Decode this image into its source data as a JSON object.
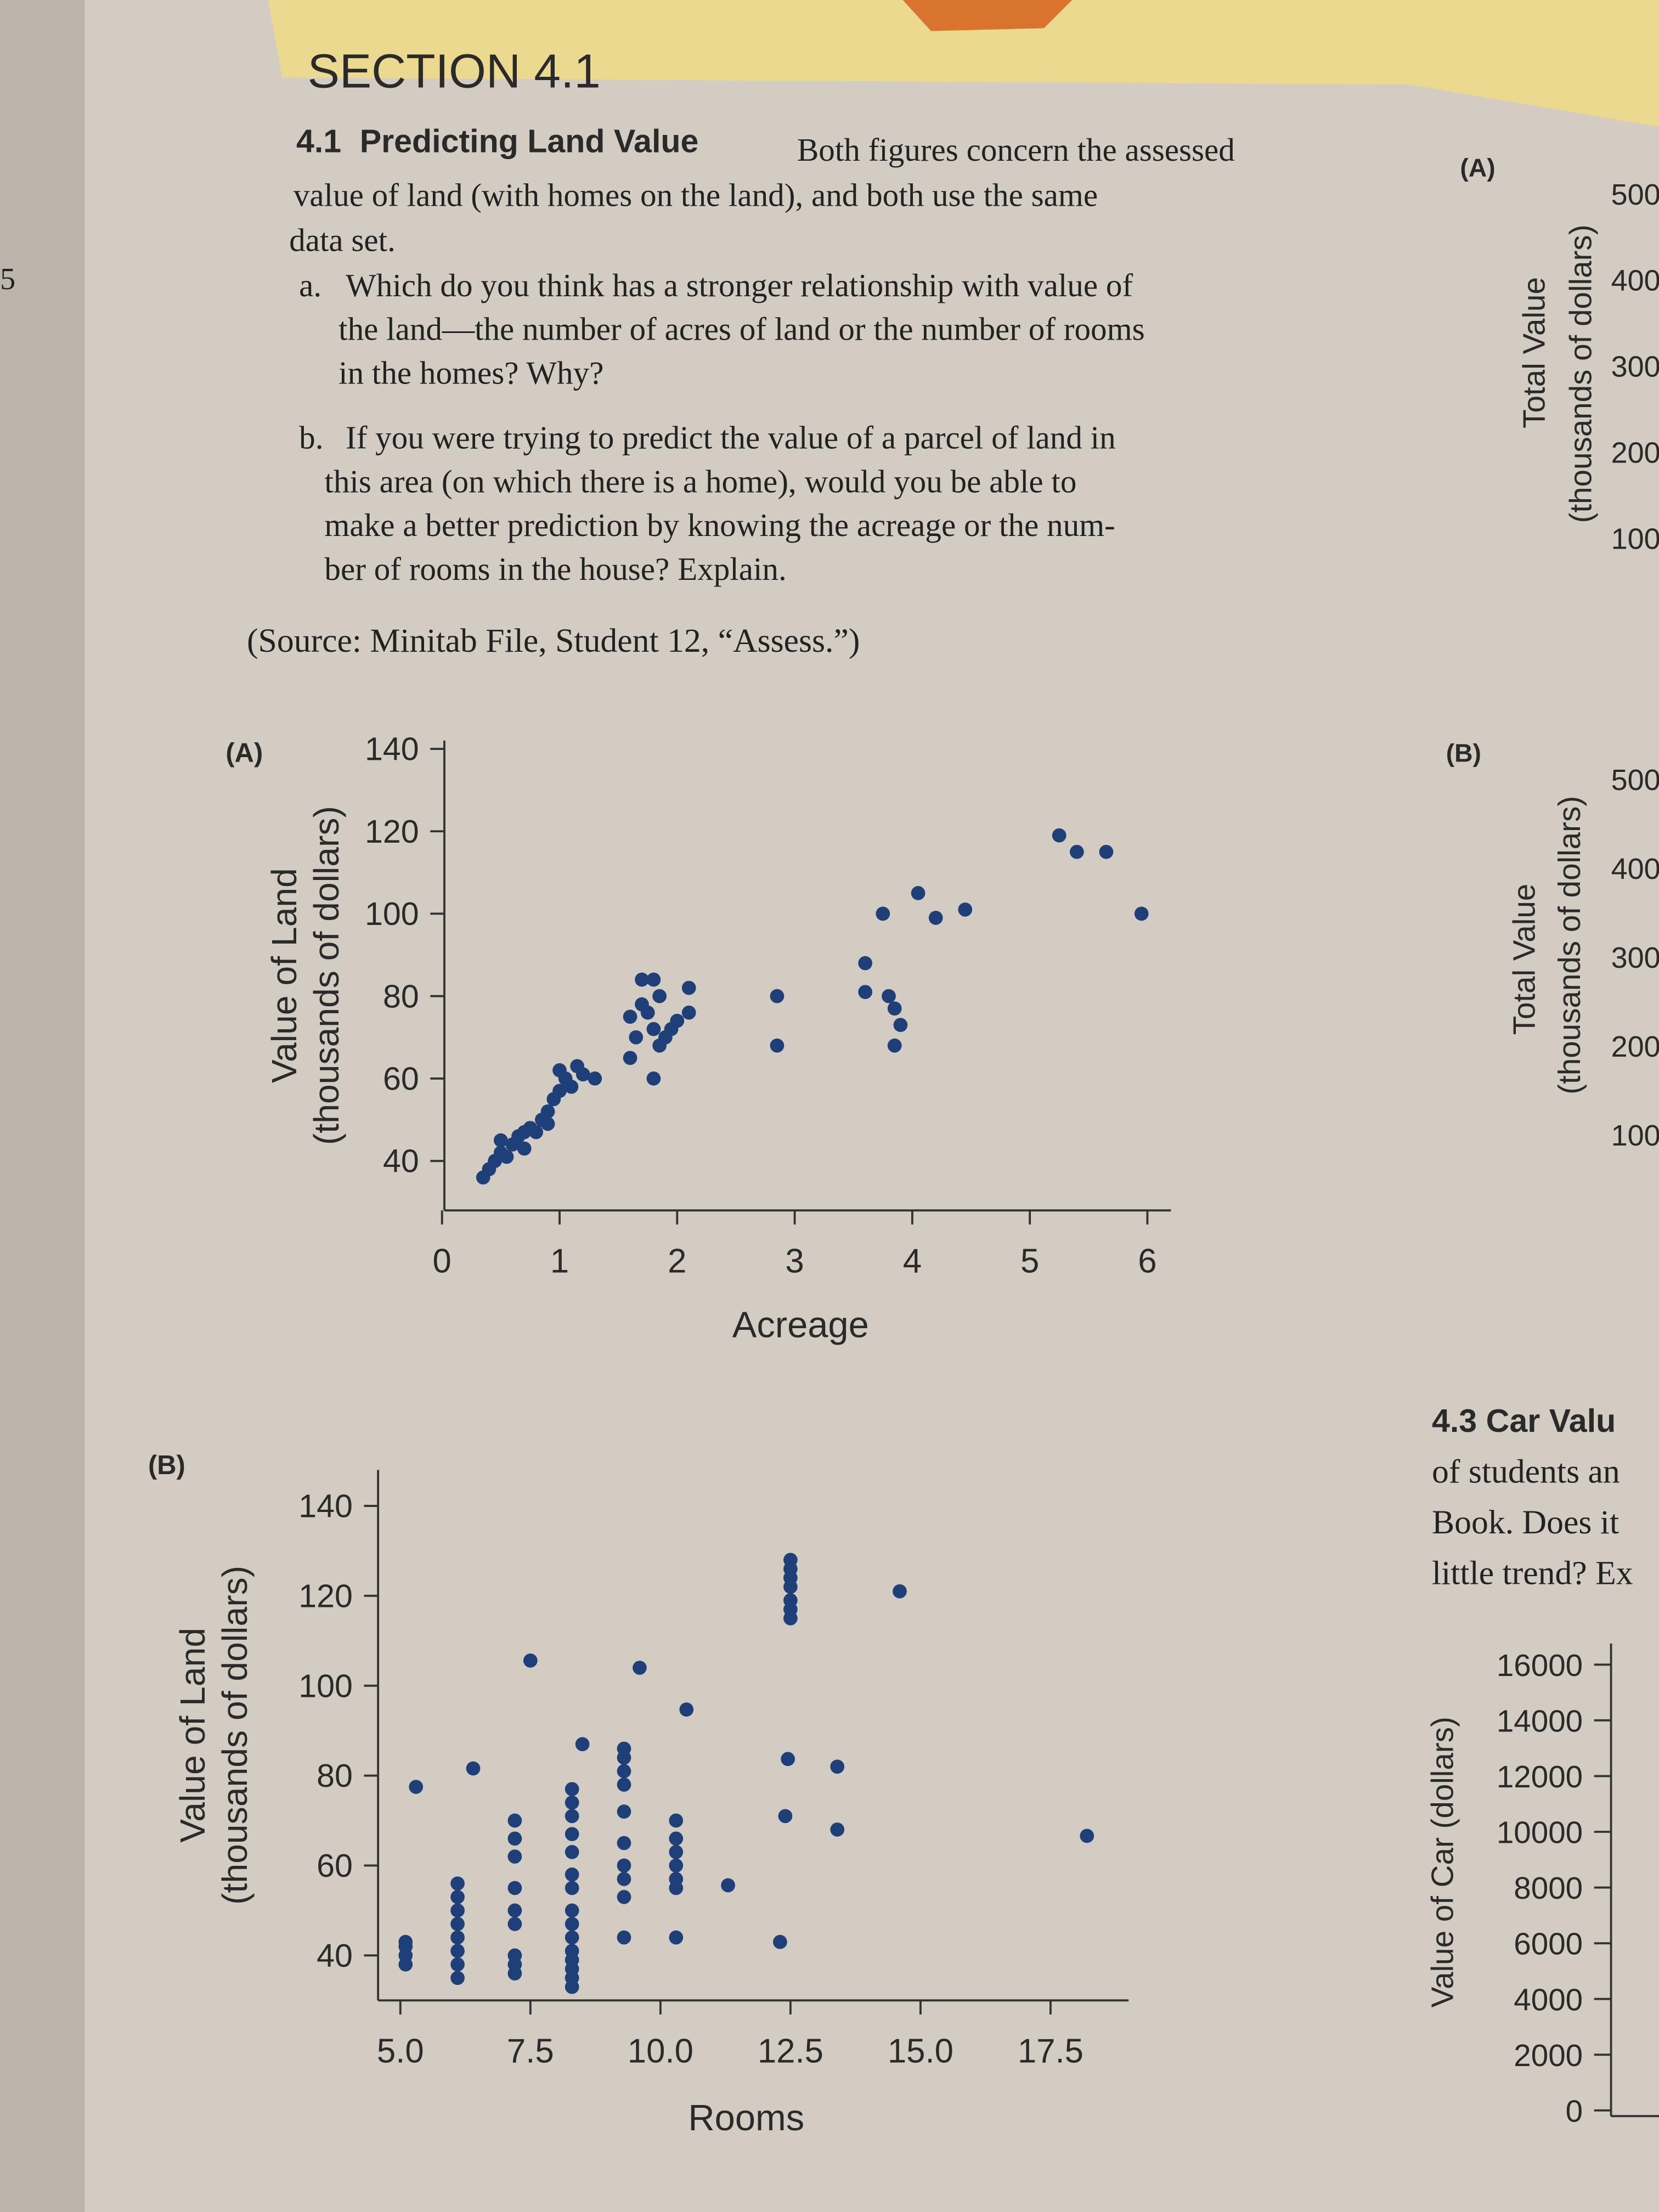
{
  "margin_number": "5",
  "section": "SECTION 4.1",
  "exercise": {
    "number": "4.1",
    "title": "Predicting Land Value",
    "intro_lines": [
      "Both figures concern the assessed",
      "value of land (with homes on the land), and both use the same",
      "data set."
    ],
    "parts": [
      {
        "label": "a.",
        "lines": [
          "Which do you think has a stronger relationship with value of",
          "the land—the number of acres of land or the number of rooms",
          "in the homes? Why?"
        ]
      },
      {
        "label": "b.",
        "lines": [
          "If you were trying to predict the value of a parcel of land in",
          "this area (on which there is a home), would you be able to",
          "make a better prediction by knowing the acreage or the num-",
          "ber of rooms in the house? Explain."
        ]
      }
    ],
    "source": "(Source: Minitab File, Student 12, “Assess.”)"
  },
  "chart_data": [
    {
      "type": "scatter",
      "panel": "(A)",
      "xlabel": "Acreage",
      "ylabel": "Value of Land",
      "ylabel_sub": "(thousands of dollars)",
      "color": "#1f3f78",
      "xlim": [
        -0.1,
        6.2
      ],
      "ylim": [
        28,
        142
      ],
      "xticks": [
        0,
        1,
        2,
        3,
        4,
        5,
        6
      ],
      "yticks": [
        40,
        60,
        80,
        100,
        120,
        140
      ],
      "x": [
        0.35,
        0.4,
        0.45,
        0.5,
        0.55,
        0.5,
        0.6,
        0.65,
        0.7,
        0.75,
        0.8,
        0.85,
        0.9,
        0.95,
        1.0,
        1.05,
        1.1,
        1.0,
        1.15,
        0.9,
        1.2,
        1.3,
        0.7,
        1.6,
        1.65,
        1.6,
        1.7,
        1.75,
        1.8,
        1.85,
        1.9,
        1.95,
        1.8,
        2.0,
        2.1,
        2.1,
        1.7,
        1.8,
        1.85,
        2.85,
        2.85,
        3.6,
        3.6,
        3.75,
        3.8,
        3.85,
        3.9,
        3.85,
        4.05,
        4.2,
        4.45,
        5.25,
        5.4,
        5.65,
        5.95
      ],
      "values": [
        36,
        38,
        40,
        42,
        41,
        45,
        44,
        46,
        43,
        48,
        47,
        50,
        52,
        55,
        57,
        60,
        58,
        62,
        63,
        49,
        61,
        60,
        47,
        65,
        70,
        75,
        78,
        76,
        72,
        68,
        70,
        72,
        60,
        74,
        76,
        82,
        84,
        84,
        80,
        80,
        68,
        88,
        81,
        100,
        80,
        77,
        73,
        68,
        105,
        99,
        101,
        119,
        115,
        115,
        100
      ]
    },
    {
      "type": "scatter",
      "panel": "(B)",
      "xlabel": "Rooms",
      "ylabel": "Value of Land",
      "ylabel_sub": "(thousands of dollars)",
      "color": "#1f3f78",
      "xlim": [
        4.3,
        19
      ],
      "ylim": [
        30,
        148
      ],
      "xticks": [
        {
          "value": 5,
          "label": "5.0"
        },
        7.5,
        {
          "value": 10,
          "label": "10.0"
        },
        12.5,
        {
          "value": 15,
          "label": "15.0"
        },
        17.5
      ],
      "yticks": [
        40,
        60,
        80,
        100,
        120,
        140
      ],
      "x": [
        5.1,
        5.1,
        5.1,
        5.1,
        5.3,
        6.1,
        6.1,
        6.1,
        6.1,
        6.1,
        6.1,
        6.1,
        6.1,
        6.4,
        7.2,
        7.2,
        7.2,
        7.2,
        7.2,
        7.2,
        7.2,
        7.2,
        7.2,
        7.5,
        8.3,
        8.3,
        8.3,
        8.3,
        8.3,
        8.3,
        8.3,
        8.3,
        8.3,
        8.3,
        8.3,
        8.3,
        8.3,
        8.3,
        8.3,
        8.5,
        9.3,
        9.3,
        9.3,
        9.3,
        9.3,
        9.3,
        9.3,
        9.3,
        9.3,
        9.3,
        9.6,
        10.3,
        10.3,
        10.3,
        10.3,
        10.3,
        10.3,
        10.3,
        10.5,
        11.3,
        12.3,
        12.5,
        12.5,
        12.5,
        12.5,
        12.5,
        12.5,
        12.5,
        12.45,
        12.4,
        13.4,
        13.4,
        14.6,
        18.2
      ],
      "values": [
        38,
        40,
        42,
        43,
        77.5,
        35,
        38,
        41,
        44,
        47,
        50,
        53,
        56,
        81.6,
        36,
        38,
        40,
        47,
        50,
        55,
        62,
        66,
        70,
        105.6,
        33,
        35,
        37,
        39,
        41,
        44,
        47,
        50,
        55,
        58,
        63,
        67,
        71,
        74,
        77,
        87,
        44,
        53,
        57,
        60,
        65,
        72,
        78,
        81,
        84,
        86,
        104,
        44,
        55,
        57,
        60,
        63,
        66,
        70,
        94.7,
        55.6,
        43,
        115,
        117,
        119,
        122,
        124,
        126,
        128,
        83.7,
        71,
        82,
        68,
        121,
        66.6
      ]
    }
  ],
  "right_column": {
    "panel_a": "(A)",
    "panel_b": "(B)",
    "total_value": "Total Value",
    "thousands": "(thousands of dollars)",
    "ticks_a": [
      "500",
      "400",
      "300",
      "200",
      "100"
    ],
    "ticks_b": [
      "500",
      "400",
      "300",
      "200",
      "100"
    ],
    "car_lines": [
      "4.3 Car Valu",
      "of students an",
      "Book. Does it",
      "little trend? Ex"
    ],
    "car_ylabel": "Value of Car (dollars)",
    "car_ticks": [
      "16000",
      "14000",
      "12000",
      "10000",
      "8000",
      "6000",
      "4000",
      "2000",
      "0"
    ]
  }
}
